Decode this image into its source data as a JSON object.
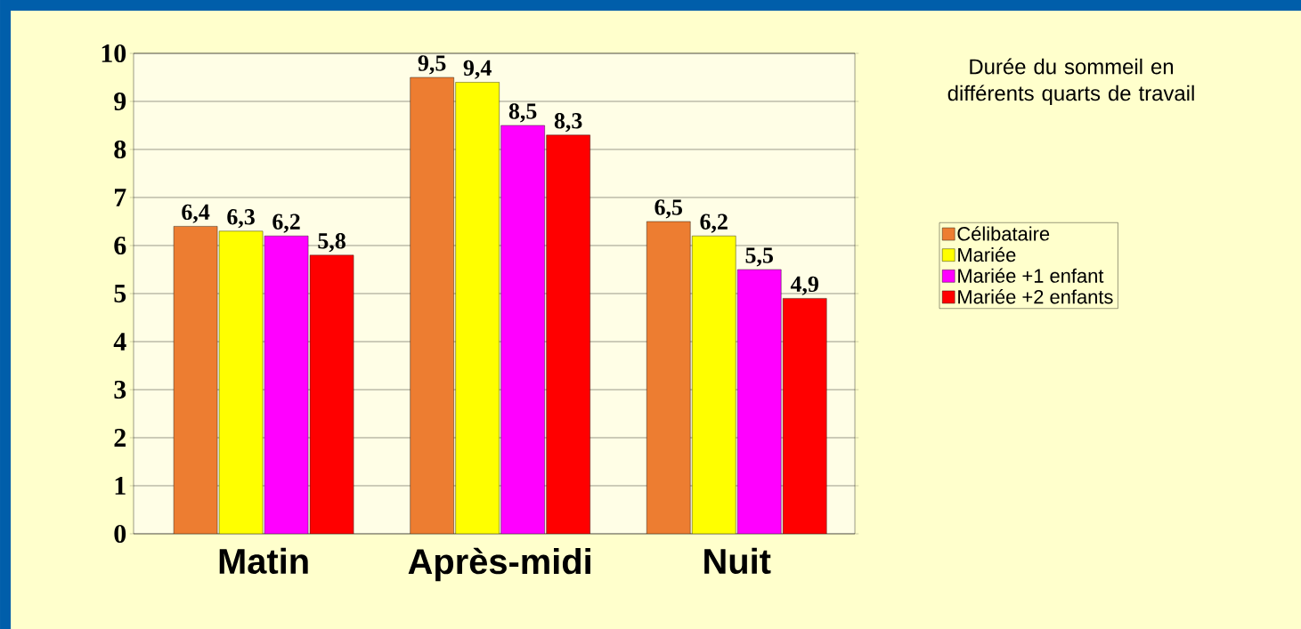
{
  "chart_data": {
    "type": "bar",
    "title": "Durée du sommeil en différents quarts de travail",
    "categories": [
      "Matin",
      "Après-midi",
      "Nuit"
    ],
    "series": [
      {
        "name": "Célibataire",
        "color": "#ED7D31",
        "values": [
          6.4,
          9.5,
          6.5
        ],
        "value_labels": [
          "6,4",
          "9,5",
          "6,5"
        ]
      },
      {
        "name": "Mariée",
        "color": "#FFFF00",
        "values": [
          6.3,
          9.4,
          6.2
        ],
        "value_labels": [
          "6,3",
          "9,4",
          "6,2"
        ]
      },
      {
        "name": "Mariée +1 enfant",
        "color": "#FF00FF",
        "values": [
          6.2,
          8.5,
          5.5
        ],
        "value_labels": [
          "6,2",
          "8,5",
          "5,5"
        ]
      },
      {
        "name": "Mariée +2 enfants",
        "color": "#FF0000",
        "values": [
          5.8,
          8.3,
          4.9
        ],
        "value_labels": [
          "5,8",
          "8,3",
          "4,9"
        ]
      }
    ],
    "ylim": [
      0,
      10
    ],
    "yticks": [
      0,
      1,
      2,
      3,
      4,
      5,
      6,
      7,
      8,
      9,
      10
    ],
    "grid": "y",
    "legend": "right"
  }
}
